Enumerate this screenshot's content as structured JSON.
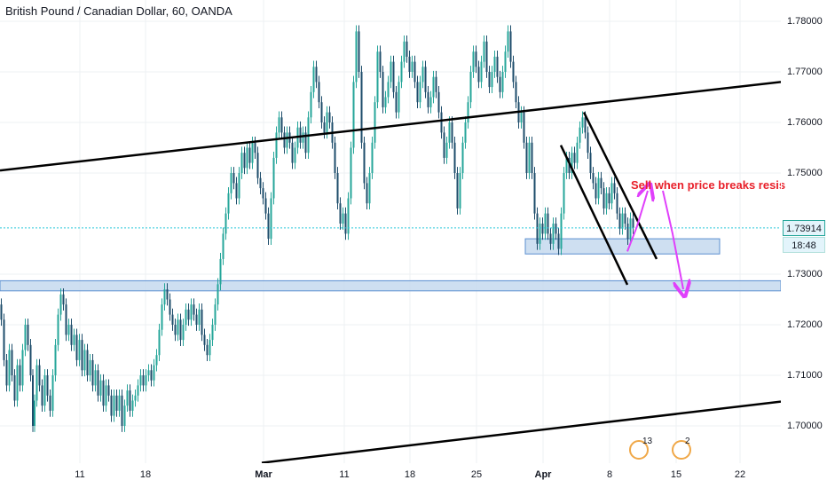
{
  "header": {
    "title": "British Pound / Canadian Dollar, 60, OANDA"
  },
  "chart_data": {
    "type": "candlestick",
    "symbol": "British Pound / Canadian Dollar",
    "interval": "60",
    "source": "OANDA",
    "y_ticks": [
      "1.78000",
      "1.77000",
      "1.76000",
      "1.75000",
      "1.73000",
      "1.72000",
      "1.71000",
      "1.70000"
    ],
    "y_tick_values": [
      1.78,
      1.77,
      1.76,
      1.75,
      1.73,
      1.72,
      1.71,
      1.7
    ],
    "x_ticks": [
      {
        "label": "11",
        "bold": false
      },
      {
        "label": "18",
        "bold": false
      },
      {
        "label": "Mar",
        "bold": true
      },
      {
        "label": "11",
        "bold": false
      },
      {
        "label": "18",
        "bold": false
      },
      {
        "label": "25",
        "bold": false
      },
      {
        "label": "Apr",
        "bold": true
      },
      {
        "label": "8",
        "bold": false
      },
      {
        "label": "15",
        "bold": false
      },
      {
        "label": "22",
        "bold": false
      }
    ],
    "last_price": "1.73914",
    "last_price_value": 1.73914,
    "countdown": "18:48",
    "annotation": "Sell when price breaks resis",
    "price_path": [
      [
        0,
        1.724
      ],
      [
        3,
        1.721
      ],
      [
        6,
        1.713
      ],
      [
        9,
        1.708
      ],
      [
        12,
        1.715
      ],
      [
        15,
        1.71
      ],
      [
        18,
        1.705
      ],
      [
        21,
        1.712
      ],
      [
        24,
        1.708
      ],
      [
        27,
        1.715
      ],
      [
        30,
        1.72
      ],
      [
        33,
        1.716
      ],
      [
        36,
        1.71
      ],
      [
        38,
        1.7
      ],
      [
        40,
        1.705
      ],
      [
        43,
        1.712
      ],
      [
        46,
        1.708
      ],
      [
        49,
        1.704
      ],
      [
        52,
        1.71
      ],
      [
        55,
        1.706
      ],
      [
        58,
        1.703
      ],
      [
        61,
        1.71
      ],
      [
        64,
        1.716
      ],
      [
        67,
        1.722
      ],
      [
        70,
        1.726
      ],
      [
        73,
        1.724
      ],
      [
        76,
        1.718
      ],
      [
        79,
        1.72
      ],
      [
        82,
        1.716
      ],
      [
        85,
        1.718
      ],
      [
        88,
        1.713
      ],
      [
        91,
        1.717
      ],
      [
        94,
        1.711
      ],
      [
        97,
        1.715
      ],
      [
        100,
        1.71
      ],
      [
        103,
        1.713
      ],
      [
        106,
        1.708
      ],
      [
        109,
        1.711
      ],
      [
        112,
        1.706
      ],
      [
        115,
        1.709
      ],
      [
        118,
        1.704
      ],
      [
        121,
        1.708
      ],
      [
        124,
        1.706
      ],
      [
        127,
        1.702
      ],
      [
        130,
        1.706
      ],
      [
        133,
        1.703
      ],
      [
        136,
        1.706
      ],
      [
        139,
        1.7
      ],
      [
        142,
        1.704
      ],
      [
        145,
        1.707
      ],
      [
        148,
        1.703
      ],
      [
        151,
        1.705
      ],
      [
        154,
        1.706
      ],
      [
        157,
        1.708
      ],
      [
        160,
        1.71
      ],
      [
        163,
        1.708
      ],
      [
        166,
        1.71
      ],
      [
        169,
        1.711
      ],
      [
        172,
        1.709
      ],
      [
        175,
        1.712
      ],
      [
        178,
        1.714
      ],
      [
        181,
        1.719
      ],
      [
        184,
        1.724
      ],
      [
        187,
        1.727
      ],
      [
        190,
        1.725
      ],
      [
        193,
        1.722
      ],
      [
        196,
        1.72
      ],
      [
        199,
        1.718
      ],
      [
        202,
        1.721
      ],
      [
        205,
        1.717
      ],
      [
        208,
        1.72
      ],
      [
        211,
        1.723
      ],
      [
        214,
        1.721
      ],
      [
        217,
        1.724
      ],
      [
        220,
        1.722
      ],
      [
        223,
        1.72
      ],
      [
        226,
        1.723
      ],
      [
        229,
        1.718
      ],
      [
        232,
        1.716
      ],
      [
        235,
        1.714
      ],
      [
        238,
        1.717
      ],
      [
        241,
        1.72
      ],
      [
        244,
        1.724
      ],
      [
        247,
        1.728
      ],
      [
        250,
        1.733
      ],
      [
        253,
        1.738
      ],
      [
        256,
        1.742
      ],
      [
        259,
        1.746
      ],
      [
        262,
        1.75
      ],
      [
        265,
        1.748
      ],
      [
        268,
        1.745
      ],
      [
        271,
        1.75
      ],
      [
        274,
        1.754
      ],
      [
        277,
        1.751
      ],
      [
        280,
        1.755
      ],
      [
        283,
        1.752
      ],
      [
        286,
        1.756
      ],
      [
        289,
        1.754
      ],
      [
        292,
        1.749
      ],
      [
        295,
        1.747
      ],
      [
        298,
        1.745
      ],
      [
        301,
        1.742
      ],
      [
        304,
        1.737
      ],
      [
        307,
        1.745
      ],
      [
        310,
        1.753
      ],
      [
        313,
        1.758
      ],
      [
        316,
        1.761
      ],
      [
        319,
        1.758
      ],
      [
        322,
        1.755
      ],
      [
        325,
        1.758
      ],
      [
        328,
        1.756
      ],
      [
        331,
        1.752
      ],
      [
        334,
        1.755
      ],
      [
        337,
        1.759
      ],
      [
        340,
        1.756
      ],
      [
        343,
        1.758
      ],
      [
        346,
        1.754
      ],
      [
        349,
        1.761
      ],
      [
        352,
        1.766
      ],
      [
        355,
        1.771
      ],
      [
        358,
        1.768
      ],
      [
        361,
        1.764
      ],
      [
        364,
        1.76
      ],
      [
        367,
        1.758
      ],
      [
        370,
        1.762
      ],
      [
        373,
        1.76
      ],
      [
        376,
        1.756
      ],
      [
        379,
        1.75
      ],
      [
        382,
        1.744
      ],
      [
        385,
        1.74
      ],
      [
        388,
        1.742
      ],
      [
        391,
        1.738
      ],
      [
        394,
        1.745
      ],
      [
        397,
        1.755
      ],
      [
        400,
        1.768
      ],
      [
        403,
        1.778
      ],
      [
        406,
        1.77
      ],
      [
        409,
        1.756
      ],
      [
        412,
        1.748
      ],
      [
        415,
        1.744
      ],
      [
        418,
        1.75
      ],
      [
        421,
        1.756
      ],
      [
        424,
        1.764
      ],
      [
        427,
        1.774
      ],
      [
        430,
        1.77
      ],
      [
        433,
        1.763
      ],
      [
        436,
        1.765
      ],
      [
        439,
        1.768
      ],
      [
        442,
        1.772
      ],
      [
        445,
        1.766
      ],
      [
        448,
        1.762
      ],
      [
        451,
        1.768
      ],
      [
        454,
        1.772
      ],
      [
        457,
        1.776
      ],
      [
        460,
        1.773
      ],
      [
        463,
        1.77
      ],
      [
        466,
        1.772
      ],
      [
        469,
        1.768
      ],
      [
        472,
        1.764
      ],
      [
        475,
        1.768
      ],
      [
        478,
        1.771
      ],
      [
        481,
        1.766
      ],
      [
        484,
        1.763
      ],
      [
        487,
        1.765
      ],
      [
        490,
        1.769
      ],
      [
        493,
        1.766
      ],
      [
        496,
        1.762
      ],
      [
        499,
        1.758
      ],
      [
        502,
        1.753
      ],
      [
        505,
        1.756
      ],
      [
        508,
        1.76
      ],
      [
        511,
        1.756
      ],
      [
        514,
        1.75
      ],
      [
        517,
        1.743
      ],
      [
        520,
        1.75
      ],
      [
        523,
        1.756
      ],
      [
        526,
        1.76
      ],
      [
        529,
        1.764
      ],
      [
        532,
        1.77
      ],
      [
        535,
        1.774
      ],
      [
        538,
        1.771
      ],
      [
        541,
        1.768
      ],
      [
        544,
        1.772
      ],
      [
        547,
        1.776
      ],
      [
        550,
        1.77
      ],
      [
        553,
        1.767
      ],
      [
        556,
        1.77
      ],
      [
        559,
        1.773
      ],
      [
        562,
        1.769
      ],
      [
        565,
        1.766
      ],
      [
        568,
        1.77
      ],
      [
        571,
        1.774
      ],
      [
        574,
        1.778
      ],
      [
        577,
        1.772
      ],
      [
        580,
        1.768
      ],
      [
        583,
        1.764
      ],
      [
        586,
        1.76
      ],
      [
        589,
        1.762
      ],
      [
        592,
        1.756
      ],
      [
        595,
        1.75
      ],
      [
        598,
        1.756
      ],
      [
        601,
        1.75
      ],
      [
        604,
        1.742
      ],
      [
        607,
        1.736
      ],
      [
        610,
        1.74
      ],
      [
        613,
        1.738
      ],
      [
        616,
        1.742
      ],
      [
        619,
        1.738
      ],
      [
        622,
        1.736
      ],
      [
        625,
        1.74
      ],
      [
        628,
        1.738
      ],
      [
        631,
        1.735
      ],
      [
        634,
        1.742
      ],
      [
        637,
        1.75
      ],
      [
        640,
        1.753
      ],
      [
        643,
        1.75
      ],
      [
        646,
        1.754
      ],
      [
        649,
        1.752
      ],
      [
        652,
        1.756
      ],
      [
        655,
        1.759
      ],
      [
        658,
        1.761
      ],
      [
        661,
        1.758
      ],
      [
        664,
        1.754
      ],
      [
        667,
        1.75
      ],
      [
        670,
        1.748
      ],
      [
        673,
        1.745
      ],
      [
        676,
        1.749
      ],
      [
        679,
        1.747
      ],
      [
        682,
        1.743
      ],
      [
        685,
        1.746
      ],
      [
        688,
        1.744
      ],
      [
        691,
        1.748
      ],
      [
        694,
        1.746
      ],
      [
        697,
        1.742
      ],
      [
        700,
        1.739
      ],
      [
        703,
        1.742
      ],
      [
        706,
        1.74
      ],
      [
        709,
        1.737
      ],
      [
        712,
        1.741
      ],
      [
        715,
        1.7391
      ]
    ],
    "trend_lines": [
      {
        "x1": 0,
        "y1": 1.7505,
        "x2": 880,
        "y2": 1.768
      },
      {
        "x1": 295,
        "y1": 1.6927,
        "x2": 880,
        "y2": 1.7048
      },
      {
        "x1": 658,
        "y1": 1.762,
        "x2": 740,
        "y2": 1.733
      },
      {
        "x1": 632,
        "y1": 1.7555,
        "x2": 707,
        "y2": 1.7279
      }
    ],
    "zones": [
      {
        "x1": 0,
        "x2": 880,
        "y_top": 1.7287,
        "y_bottom": 1.7267
      },
      {
        "x1": 592,
        "x2": 811,
        "y_top": 1.737,
        "y_bottom": 1.734
      }
    ],
    "arrows": [
      {
        "points": [
          [
            707,
            1.7345
          ],
          [
            718,
            1.7395
          ],
          [
            730,
            1.7465
          ]
        ]
      },
      {
        "points": [
          [
            747,
            1.7465
          ],
          [
            758,
            1.738
          ],
          [
            770,
            1.727
          ]
        ]
      }
    ],
    "events": [
      {
        "label": "13",
        "x": 720
      },
      {
        "label": "2",
        "x": 768
      }
    ]
  },
  "colors": {
    "candle": "#26a69a",
    "candle_down": "#1e4d6b",
    "trend_line": "#000000",
    "zone_fill": "#c5d9ef",
    "zone_border": "#5b8fd0",
    "arrow": "#e040fb",
    "last_price_line": "#26c6da",
    "annotation": "#e8202a"
  }
}
